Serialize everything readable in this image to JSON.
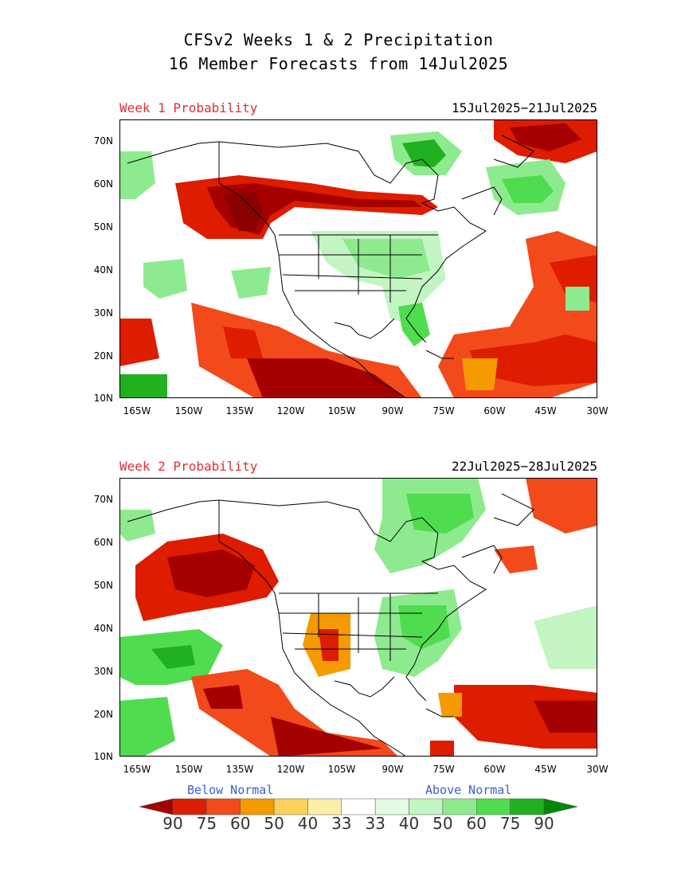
{
  "title": {
    "line1": "CFSv2 Weeks 1 & 2 Precipitation",
    "line2": "16 Member Forecasts from 14Jul2025"
  },
  "panels": [
    {
      "label": "Week 1 Probability",
      "dates": "15Jul2025−21Jul2025"
    },
    {
      "label": "Week 2 Probability",
      "dates": "22Jul2025−28Jul2025"
    }
  ],
  "axes": {
    "lat_labels": [
      "70N",
      "60N",
      "50N",
      "40N",
      "30N",
      "20N",
      "10N"
    ],
    "lon_labels": [
      "165W",
      "150W",
      "135W",
      "120W",
      "105W",
      "90W",
      "75W",
      "60W",
      "45W",
      "30W"
    ]
  },
  "legend": {
    "below_label": "Below Normal",
    "above_label": "Above Normal",
    "values": [
      "90",
      "75",
      "60",
      "50",
      "40",
      "33",
      "33",
      "40",
      "50",
      "60",
      "75",
      "90"
    ],
    "colors": [
      "#a50000",
      "#dd1c00",
      "#f24a1a",
      "#f59a00",
      "#fad25a",
      "#fcf0a8",
      "#ffffff",
      "#e2fbe2",
      "#c2f5c2",
      "#8eea8e",
      "#4fdc4f",
      "#20b020",
      "#008800"
    ]
  }
}
